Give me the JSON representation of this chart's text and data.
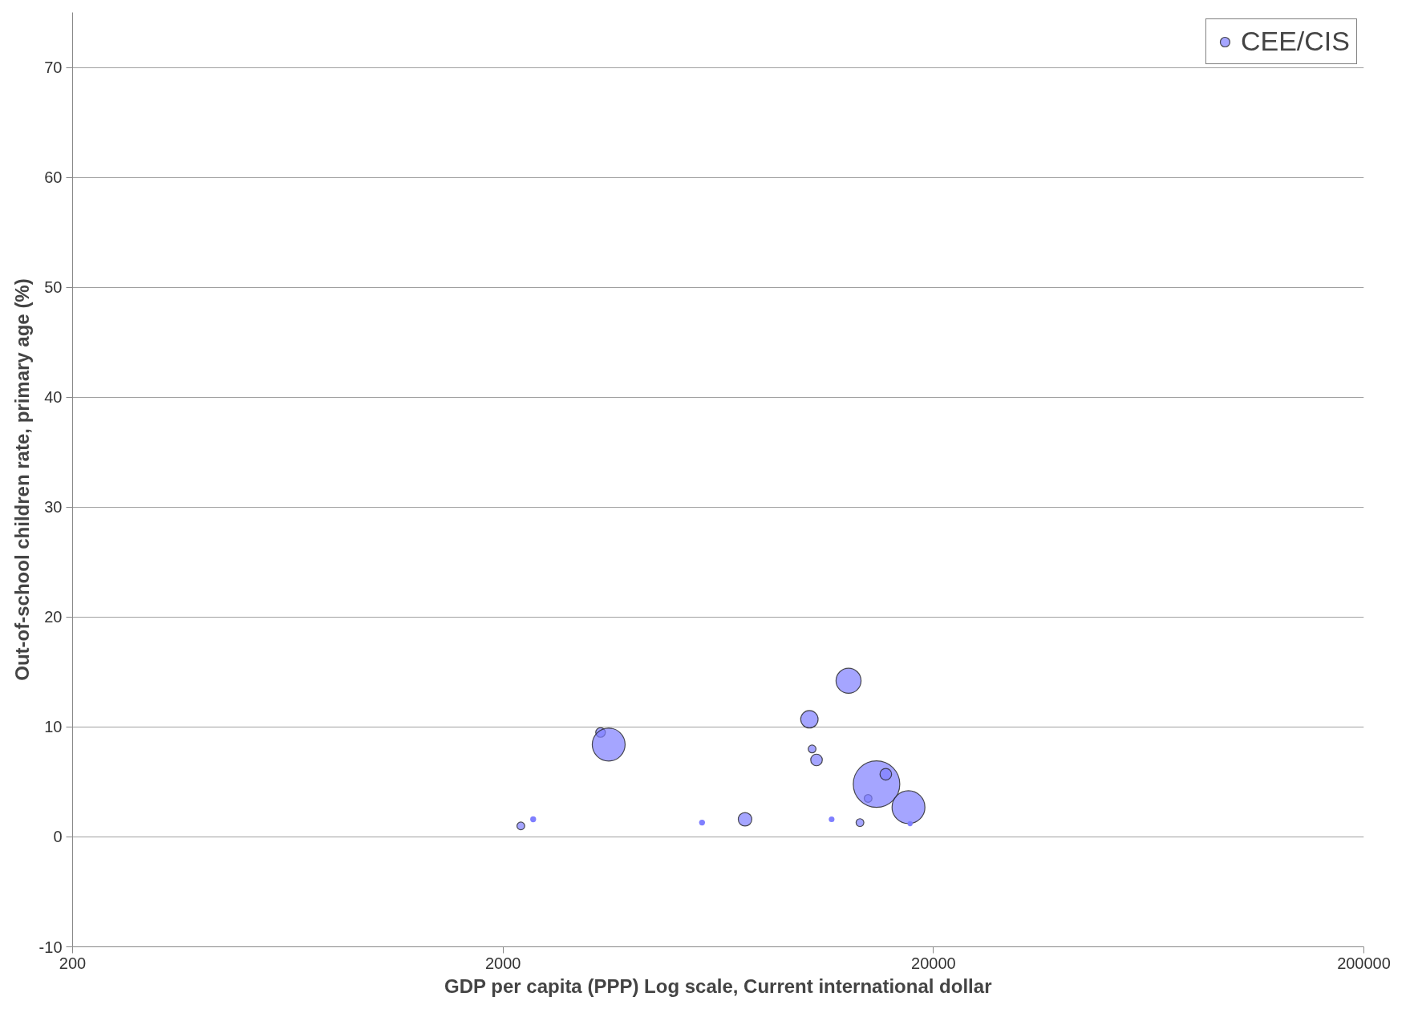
{
  "chart_data": {
    "type": "bubble",
    "xlabel": "GDP per capita (PPP) Log scale, Current international dollar",
    "ylabel": "Out-of-school children rate, primary age (%)",
    "log": "x",
    "grid": "y",
    "legend": "top right",
    "xlim": [
      200,
      200000
    ],
    "xticks": [
      200,
      2000,
      20000,
      200000
    ],
    "ylim": [
      -10,
      75
    ],
    "yticks": [
      -10,
      0,
      10,
      20,
      30,
      40,
      50,
      60,
      70
    ],
    "series": [
      {
        "name": "CEE/CIS",
        "color": "#7f7fff",
        "x": [
          2200,
          2350,
          3370,
          3520,
          5800,
          7300,
          10300,
          10450,
          10700,
          11600,
          12700,
          13500,
          14100,
          14750,
          15500,
          17500,
          17650
        ],
        "values": [
          1.0,
          1.6,
          9.5,
          8.4,
          1.3,
          1.6,
          10.7,
          8.0,
          7.0,
          1.6,
          14.2,
          1.3,
          3.5,
          4.8,
          5.7,
          2.7,
          1.2
        ],
        "sizes": [
          0.028,
          0.016,
          0.043,
          0.5,
          0.016,
          0.085,
          0.14,
          0.028,
          0.0625,
          0.015,
          0.29,
          0.028,
          0.028,
          1,
          0.0625,
          0.5,
          0.012
        ]
      }
    ]
  }
}
